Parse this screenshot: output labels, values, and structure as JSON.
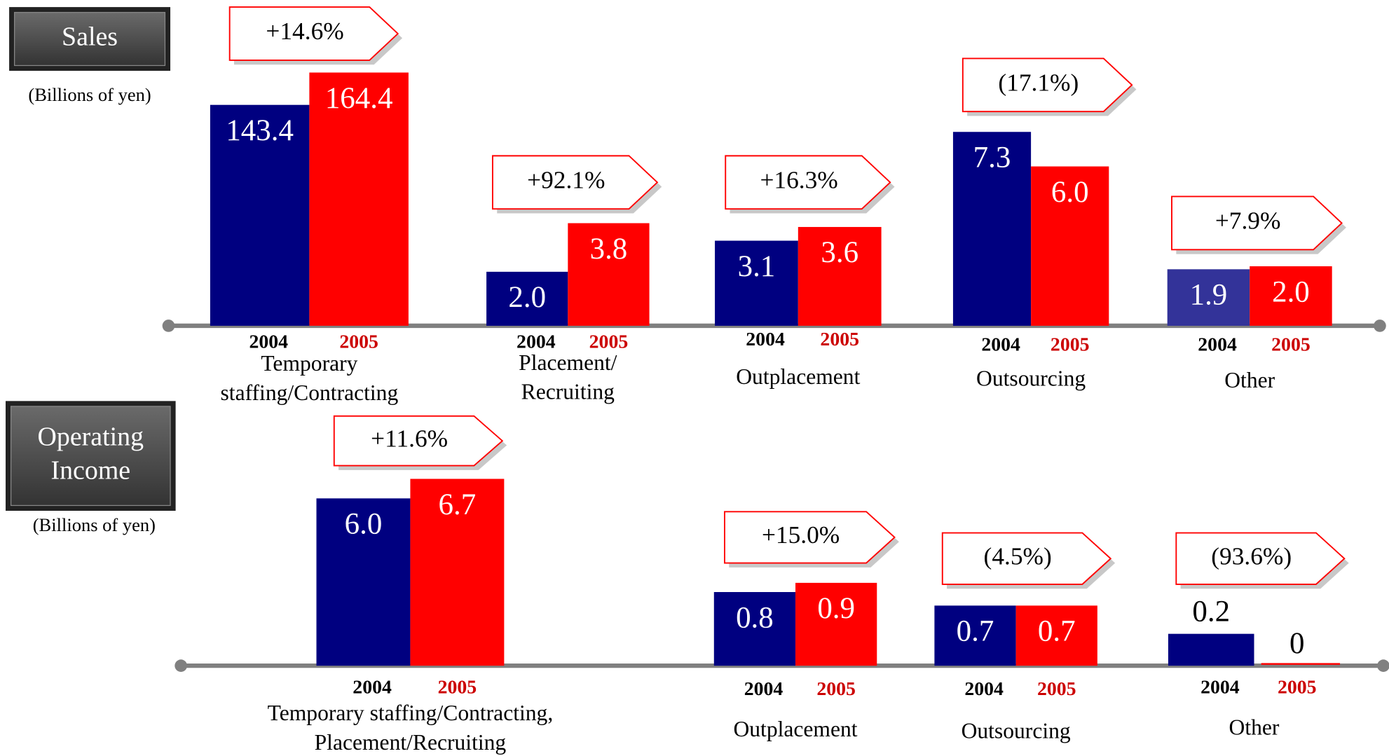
{
  "chart_data": [
    {
      "type": "bar",
      "title": "Sales",
      "unit": "(Billions of yen)",
      "years": [
        "2004",
        "2005"
      ],
      "series_colors": [
        "#000080",
        "#ff0000"
      ],
      "groups": [
        {
          "label": [
            "Temporary",
            "staffing/Contracting"
          ],
          "change": "+14.6%",
          "values": [
            143.4,
            164.4
          ],
          "value_labels": [
            "143.4",
            "164.4"
          ]
        },
        {
          "label": [
            "Placement/",
            "Recruiting"
          ],
          "change": "+92.1%",
          "values": [
            2.0,
            3.8
          ],
          "value_labels": [
            "2.0",
            "3.8"
          ]
        },
        {
          "label": [
            "Outplacement"
          ],
          "change": "+16.3%",
          "values": [
            3.1,
            3.6
          ],
          "value_labels": [
            "3.1",
            "3.6"
          ]
        },
        {
          "label": [
            "Outsourcing"
          ],
          "change": "(17.1%)",
          "values": [
            7.3,
            6.0
          ],
          "value_labels": [
            "7.3",
            "6.0"
          ]
        },
        {
          "label": [
            "Other"
          ],
          "change": "+7.9%",
          "values": [
            1.9,
            2.0
          ],
          "value_labels": [
            "1.9",
            "2.0"
          ],
          "colors": [
            "#333399",
            "#ff0000"
          ]
        }
      ]
    },
    {
      "type": "bar",
      "title": "Operating Income",
      "unit": "(Billions of yen)",
      "years": [
        "2004",
        "2005"
      ],
      "series_colors": [
        "#000080",
        "#ff0000"
      ],
      "groups": [
        {
          "label": [
            "Temporary staffing/Contracting,",
            "Placement/Recruiting"
          ],
          "change": "+11.6%",
          "values": [
            6.0,
            6.7
          ],
          "value_labels": [
            "6.0",
            "6.7"
          ]
        },
        {
          "label": [
            "Outplacement"
          ],
          "change": "+15.0%",
          "values": [
            0.8,
            0.9
          ],
          "value_labels": [
            "0.8",
            "0.9"
          ]
        },
        {
          "label": [
            "Outsourcing"
          ],
          "change": "(4.5%)",
          "values": [
            0.7,
            0.7
          ],
          "value_labels": [
            "0.7",
            "0.7"
          ]
        },
        {
          "label": [
            "Other"
          ],
          "change": "(93.6%)",
          "values": [
            0.2,
            0
          ],
          "value_labels": [
            "0.2",
            "0"
          ]
        }
      ]
    }
  ]
}
